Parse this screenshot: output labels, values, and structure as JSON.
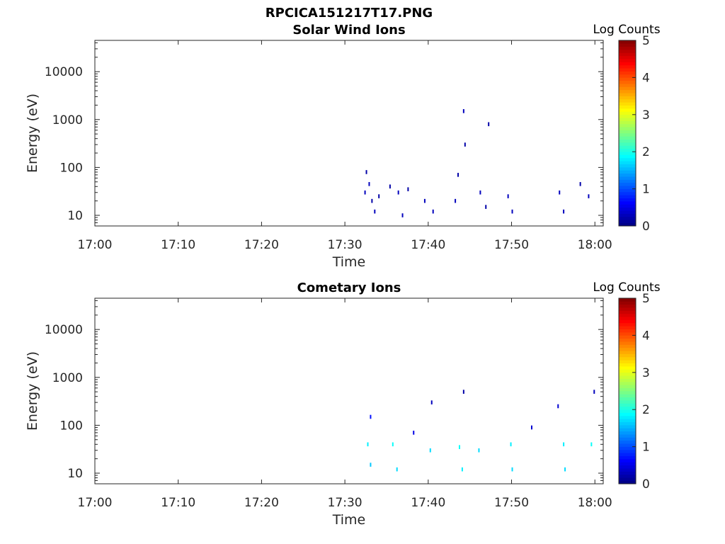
{
  "figure_title": "RPCICA151217T17.PNG",
  "chart_data": [
    {
      "type": "heatmap",
      "title": "Solar Wind Ions",
      "xlabel": "Time",
      "ylabel": "Energy (eV)",
      "yscale": "log",
      "xlim": [
        "17:00",
        "18:01"
      ],
      "ylim": [
        6,
        45000
      ],
      "x_ticks": [
        "17:00",
        "17:10",
        "17:20",
        "17:30",
        "17:40",
        "17:50",
        "18:00"
      ],
      "y_ticks": [
        "10",
        "100",
        "1000",
        "10000"
      ],
      "colorbar": {
        "label": "Log Counts",
        "range": [
          0,
          5
        ],
        "ticks": [
          "0",
          "1",
          "2",
          "3",
          "4",
          "5"
        ],
        "colormap": "jet"
      },
      "cells": [
        {
          "t": "17:32:20",
          "e": 30,
          "v": 0.3
        },
        {
          "t": "17:32:30",
          "e": 80,
          "v": 0.2
        },
        {
          "t": "17:32:50",
          "e": 45,
          "v": 0.3
        },
        {
          "t": "17:33:10",
          "e": 20,
          "v": 0.2
        },
        {
          "t": "17:33:30",
          "e": 12,
          "v": 0.3
        },
        {
          "t": "17:34:00",
          "e": 25,
          "v": 0.2
        },
        {
          "t": "17:35:20",
          "e": 40,
          "v": 0.2
        },
        {
          "t": "17:36:20",
          "e": 30,
          "v": 0.3
        },
        {
          "t": "17:36:50",
          "e": 10,
          "v": 0.3
        },
        {
          "t": "17:37:30",
          "e": 35,
          "v": 0.2
        },
        {
          "t": "17:39:30",
          "e": 20,
          "v": 0.3
        },
        {
          "t": "17:40:30",
          "e": 12,
          "v": 0.3
        },
        {
          "t": "17:43:10",
          "e": 20,
          "v": 0.3
        },
        {
          "t": "17:43:30",
          "e": 70,
          "v": 0.2
        },
        {
          "t": "17:44:10",
          "e": 1500,
          "v": 0.3
        },
        {
          "t": "17:44:20",
          "e": 300,
          "v": 0.2
        },
        {
          "t": "17:46:10",
          "e": 30,
          "v": 0.3
        },
        {
          "t": "17:46:50",
          "e": 15,
          "v": 0.2
        },
        {
          "t": "17:47:10",
          "e": 800,
          "v": 0.2
        },
        {
          "t": "17:49:30",
          "e": 25,
          "v": 0.3
        },
        {
          "t": "17:50:00",
          "e": 12,
          "v": 0.3
        },
        {
          "t": "17:55:40",
          "e": 30,
          "v": 0.3
        },
        {
          "t": "17:56:10",
          "e": 12,
          "v": 0.3
        },
        {
          "t": "17:58:10",
          "e": 45,
          "v": 0.2
        },
        {
          "t": "17:59:10",
          "e": 25,
          "v": 0.3
        }
      ]
    },
    {
      "type": "heatmap",
      "title": "Cometary Ions",
      "xlabel": "Time",
      "ylabel": "Energy (eV)",
      "yscale": "log",
      "xlim": [
        "17:00",
        "18:01"
      ],
      "ylim": [
        6,
        45000
      ],
      "x_ticks": [
        "17:00",
        "17:10",
        "17:20",
        "17:30",
        "17:40",
        "17:50",
        "18:00"
      ],
      "y_ticks": [
        "10",
        "100",
        "1000",
        "10000"
      ],
      "colorbar": {
        "label": "Log Counts",
        "range": [
          0,
          5
        ],
        "ticks": [
          "0",
          "1",
          "2",
          "3",
          "4",
          "5"
        ],
        "colormap": "jet"
      },
      "cells": [
        {
          "t": "17:32:40",
          "e": 40,
          "v": 1.8
        },
        {
          "t": "17:33:00",
          "e": 15,
          "v": 1.6
        },
        {
          "t": "17:33:00",
          "e": 150,
          "v": 0.7
        },
        {
          "t": "17:35:40",
          "e": 40,
          "v": 1.9
        },
        {
          "t": "17:36:10",
          "e": 12,
          "v": 1.7
        },
        {
          "t": "17:38:10",
          "e": 70,
          "v": 0.5
        },
        {
          "t": "17:40:10",
          "e": 30,
          "v": 1.7
        },
        {
          "t": "17:40:20",
          "e": 300,
          "v": 0.3
        },
        {
          "t": "17:43:40",
          "e": 35,
          "v": 1.9
        },
        {
          "t": "17:44:00",
          "e": 12,
          "v": 1.8
        },
        {
          "t": "17:44:10",
          "e": 500,
          "v": 0.2
        },
        {
          "t": "17:46:00",
          "e": 30,
          "v": 1.7
        },
        {
          "t": "17:49:50",
          "e": 40,
          "v": 1.8
        },
        {
          "t": "17:50:00",
          "e": 12,
          "v": 1.7
        },
        {
          "t": "17:52:20",
          "e": 90,
          "v": 0.4
        },
        {
          "t": "17:55:30",
          "e": 250,
          "v": 0.4
        },
        {
          "t": "17:56:10",
          "e": 40,
          "v": 1.8
        },
        {
          "t": "17:56:20",
          "e": 12,
          "v": 1.7
        },
        {
          "t": "17:59:30",
          "e": 40,
          "v": 1.9
        },
        {
          "t": "17:59:50",
          "e": 500,
          "v": 0.3
        }
      ]
    }
  ]
}
